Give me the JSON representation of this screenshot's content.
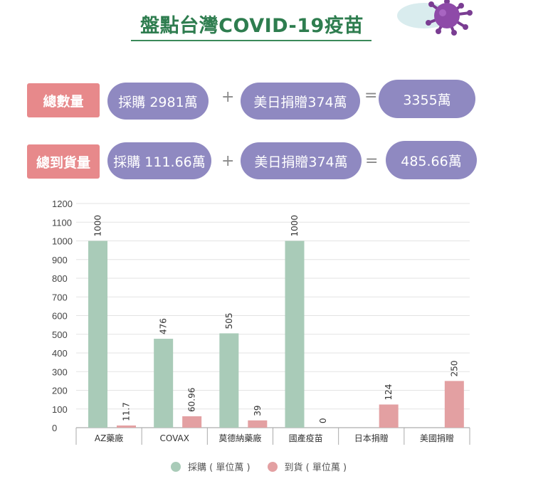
{
  "header": {
    "title": "盤點台灣COVID-19疫苗"
  },
  "summary": {
    "row1": {
      "label": "總數量",
      "purchase": "採購 2981萬",
      "plus": "+",
      "donation": "美日捐贈374萬",
      "equals": "=",
      "total": "3355萬"
    },
    "row2": {
      "label": "總到貨量",
      "purchase": "採購 111.66萬",
      "plus": "+",
      "donation": "美日捐贈374萬",
      "equals": "=",
      "total": "485.66萬"
    }
  },
  "colors": {
    "purchase": "#a9cbb8",
    "arrival": "#e3a0a2",
    "label_bg": "#e7898b",
    "pill_bg": "#8f89c1",
    "title": "#2e7d4f"
  },
  "chart_data": {
    "type": "bar",
    "categories": [
      "AZ藥廠",
      "COVAX",
      "莫德納藥廠",
      "國產疫苗",
      "日本捐贈",
      "美國捐贈"
    ],
    "series": [
      {
        "name": "採購 ( 單位萬 )",
        "values": [
          1000,
          476,
          505,
          1000,
          null,
          null
        ],
        "labels": [
          "1000",
          "476",
          "505",
          "1000",
          "",
          ""
        ]
      },
      {
        "name": "到貨 ( 單位萬 )",
        "values": [
          11.7,
          60.96,
          39,
          0,
          124,
          250
        ],
        "labels": [
          "11.7",
          "60.96",
          "39",
          "0",
          "124",
          "250"
        ]
      }
    ],
    "yticks": [
      "0",
      "100",
      "200",
      "300",
      "400",
      "500",
      "600",
      "700",
      "800",
      "900",
      "1000",
      "1100",
      "1200"
    ],
    "ylim": [
      0,
      1200
    ],
    "grid": true,
    "legend_position": "bottom"
  }
}
